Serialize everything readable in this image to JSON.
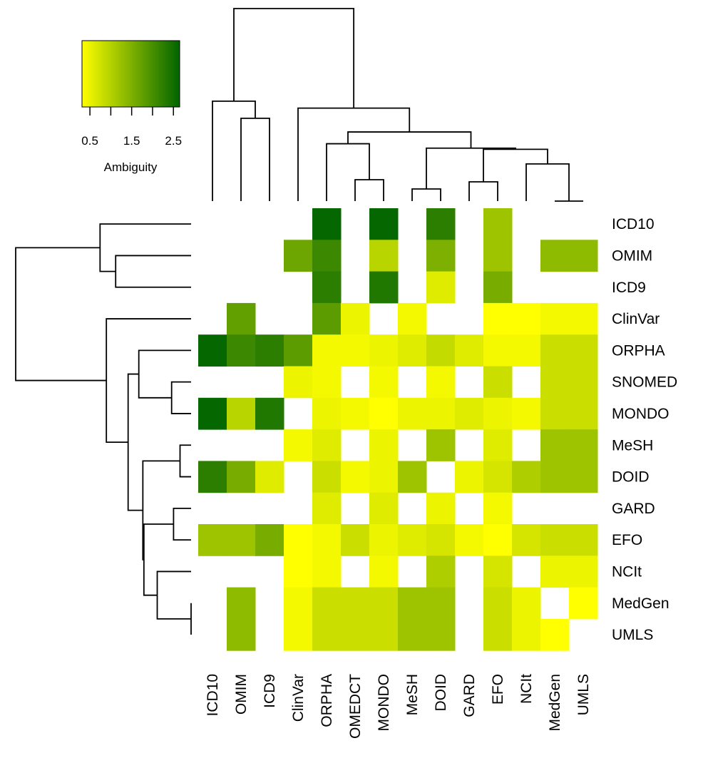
{
  "chart_data": {
    "type": "heatmap",
    "title": "",
    "columns": [
      "ICD10",
      "OMIM",
      "ICD9",
      "ClinVar",
      "ORPHA",
      "OMEDCT",
      "MONDO",
      "MeSH",
      "DOID",
      "GARD",
      "EFO",
      "NCIt",
      "MedGen",
      "UMLS"
    ],
    "rows": [
      "ICD10",
      "OMIM",
      "ICD9",
      "ClinVar",
      "ORPHA",
      "SNOMED",
      "MONDO",
      "MeSH",
      "DOID",
      "GARD",
      "EFO",
      "NCIt",
      "MedGen",
      "UMLS"
    ],
    "values": [
      [
        null,
        null,
        null,
        null,
        2.6,
        null,
        2.6,
        null,
        2.25,
        null,
        1.2,
        null,
        null,
        null
      ],
      [
        null,
        null,
        null,
        1.65,
        2.1,
        null,
        0.95,
        null,
        1.5,
        null,
        1.2,
        null,
        1.35,
        1.35
      ],
      [
        null,
        null,
        null,
        null,
        2.25,
        null,
        2.35,
        null,
        0.6,
        null,
        1.55,
        null,
        null,
        null
      ],
      [
        null,
        1.75,
        null,
        null,
        1.8,
        0.48,
        null,
        0.4,
        null,
        null,
        0.31,
        0.31,
        0.4,
        0.4
      ],
      [
        2.6,
        2.1,
        2.25,
        1.8,
        0.4,
        0.4,
        0.48,
        0.6,
        0.85,
        0.6,
        0.4,
        0.4,
        0.8,
        0.8
      ],
      [
        null,
        null,
        null,
        0.48,
        0.4,
        null,
        0.4,
        null,
        0.4,
        null,
        0.8,
        null,
        0.8,
        0.8
      ],
      [
        2.6,
        0.95,
        2.35,
        null,
        0.48,
        0.4,
        0.31,
        0.48,
        0.48,
        0.6,
        0.48,
        0.4,
        0.8,
        0.8
      ],
      [
        null,
        null,
        null,
        0.4,
        0.6,
        null,
        0.48,
        null,
        1.2,
        null,
        0.6,
        null,
        1.2,
        1.2
      ],
      [
        2.25,
        1.55,
        0.6,
        null,
        0.8,
        0.4,
        0.48,
        1.2,
        null,
        0.48,
        0.7,
        1.05,
        1.2,
        1.2
      ],
      [
        null,
        null,
        null,
        null,
        0.6,
        null,
        0.6,
        null,
        0.48,
        null,
        0.4,
        null,
        null,
        null
      ],
      [
        1.2,
        1.2,
        1.55,
        0.31,
        0.4,
        0.8,
        0.48,
        0.6,
        0.7,
        0.4,
        0.31,
        0.7,
        0.8,
        0.8
      ],
      [
        null,
        null,
        null,
        0.31,
        0.4,
        null,
        0.4,
        null,
        1.05,
        null,
        0.7,
        null,
        0.48,
        0.48
      ],
      [
        null,
        1.35,
        null,
        0.4,
        0.8,
        0.8,
        0.8,
        1.2,
        1.2,
        null,
        0.8,
        0.48,
        null,
        0.31
      ],
      [
        null,
        1.35,
        null,
        0.4,
        0.8,
        0.8,
        0.8,
        1.2,
        1.2,
        null,
        0.8,
        0.48,
        0.31,
        null
      ]
    ],
    "missing_color": "#ffffff",
    "colorscale": {
      "low_color": "#ffff00",
      "high_color": "#006400",
      "range": [
        0.31,
        2.65
      ],
      "ticks": [
        0.5,
        1.0,
        1.5,
        2.0,
        2.5
      ],
      "tick_labels": [
        "0.5",
        "",
        "1.5",
        "",
        "2.5"
      ],
      "label": "Ambiguity",
      "placement": "top-left"
    },
    "dendrogram": {
      "h": 1.0,
      "c": [
        {
          "h": 0.519,
          "c": [
            0,
            {
              "h": 0.43,
              "c": [
                1,
                2
              ]
            }
          ]
        },
        {
          "h": 0.483,
          "c": [
            3,
            {
              "h": 0.359,
              "c": [
                {
                  "h": 0.298,
                  "c": [
                    4,
                    {
                      "h": 0.111,
                      "c": [
                        5,
                        6
                      ]
                    }
                  ]
                },
                {
                  "h": 0.275,
                  "c": [
                    {
                      "h": 0.063,
                      "c": [
                        7,
                        8
                      ]
                    },
                    {
                      "h": 0.269,
                      "c": [
                        {
                          "h": 0.1,
                          "c": [
                            9,
                            10
                          ]
                        },
                        {
                          "h": 0.193,
                          "c": [
                            11,
                            {
                              "h": 0.0,
                              "c": [
                                12,
                                13
                              ]
                            }
                          ]
                        }
                      ]
                    }
                  ]
                }
              ]
            }
          ]
        }
      ]
    }
  }
}
